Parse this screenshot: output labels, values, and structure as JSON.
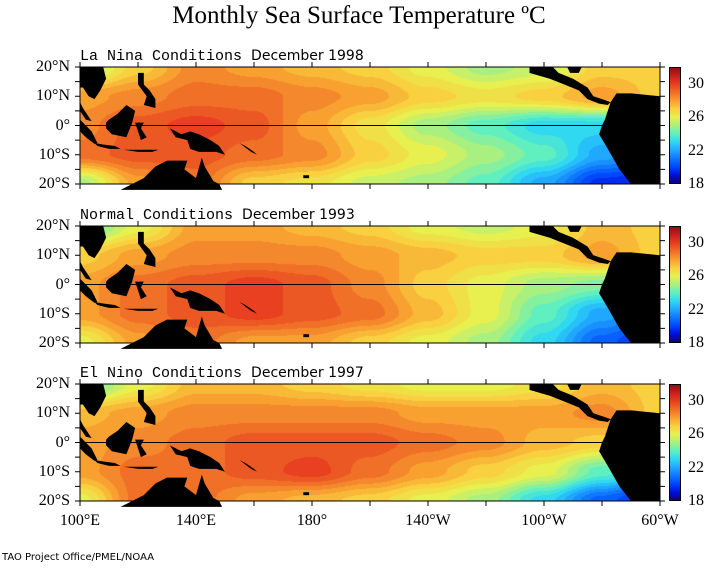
{
  "title": "Monthly Sea Surface Temperature ºC",
  "footer": "TAO Project Office/PMEL/NOAA",
  "lat_labels": [
    "20°N",
    "10°N",
    "0°",
    "10°S",
    "20°S"
  ],
  "lon_labels": [
    "100°E",
    "140°E",
    "180°",
    "140°W",
    "100°W",
    "60°W"
  ],
  "colorbar": {
    "min": 18,
    "max": 32,
    "labels": [
      "30",
      "26",
      "22",
      "18"
    ],
    "unit": "°C"
  },
  "panels": [
    {
      "name": "La Nina Conditions",
      "date": "December 1998",
      "grid_lon": [
        "100E",
        "120E",
        "140E",
        "160E",
        "180",
        "160W",
        "140W",
        "120W",
        "100W",
        "80W",
        "60W"
      ],
      "grid_lat": [
        "20N",
        "10N",
        "0",
        "10S",
        "20S"
      ],
      "sst": [
        [
          25,
          27,
          28.5,
          28,
          27.5,
          27,
          26,
          25,
          25.5,
          27,
          27
        ],
        [
          28,
          28.5,
          29,
          29,
          28.5,
          28,
          27,
          26.5,
          27,
          28,
          27
        ],
        [
          28.5,
          29.5,
          30,
          29.5,
          28,
          26.5,
          25,
          24,
          23,
          23,
          26
        ],
        [
          29,
          29.5,
          29.5,
          29,
          28.5,
          27,
          26,
          25,
          24,
          22,
          21
        ],
        [
          25,
          28,
          29,
          27,
          26.5,
          25.5,
          25,
          24,
          22,
          19.5,
          19
        ]
      ]
    },
    {
      "name": "Normal Conditions",
      "date": "December 1993",
      "grid_lon": [
        "100E",
        "120E",
        "140E",
        "160E",
        "180",
        "160W",
        "140W",
        "120W",
        "100W",
        "80W",
        "60W"
      ],
      "grid_lat": [
        "20N",
        "10N",
        "0",
        "10S",
        "20S"
      ],
      "sst": [
        [
          24,
          26,
          28,
          28,
          27.5,
          27,
          26,
          25.5,
          26,
          27.5,
          27
        ],
        [
          27,
          28,
          28.5,
          28.5,
          28.5,
          28,
          27.5,
          27,
          27,
          28,
          27
        ],
        [
          28,
          29,
          29.5,
          30,
          29.5,
          28.5,
          27,
          26,
          25,
          24.5,
          26
        ],
        [
          28,
          29,
          29.5,
          30,
          29.5,
          29,
          27.5,
          26,
          24,
          22,
          21
        ],
        [
          26,
          28,
          29,
          28,
          28,
          27,
          26,
          25,
          23,
          20.5,
          19
        ]
      ]
    },
    {
      "name": "El Nino Conditions",
      "date": "December 1997",
      "grid_lon": [
        "100E",
        "120E",
        "140E",
        "160E",
        "180",
        "160W",
        "140W",
        "120W",
        "100W",
        "80W",
        "60W"
      ],
      "grid_lat": [
        "20N",
        "10N",
        "0",
        "10S",
        "20S"
      ],
      "sst": [
        [
          24,
          26,
          27.5,
          27.5,
          27,
          26.5,
          26,
          26,
          26.5,
          27.5,
          27
        ],
        [
          27.5,
          28,
          28.5,
          28.5,
          28.5,
          28.5,
          28,
          28,
          28,
          28.5,
          27
        ],
        [
          28,
          28.5,
          29,
          29.5,
          29.5,
          29.5,
          29,
          28.5,
          27.5,
          27,
          26
        ],
        [
          28,
          29,
          29,
          29.5,
          30,
          29,
          28,
          27,
          26,
          24,
          22
        ],
        [
          26,
          29,
          29,
          28,
          27.5,
          27,
          26,
          25,
          23,
          20.5,
          19
        ]
      ]
    }
  ]
}
